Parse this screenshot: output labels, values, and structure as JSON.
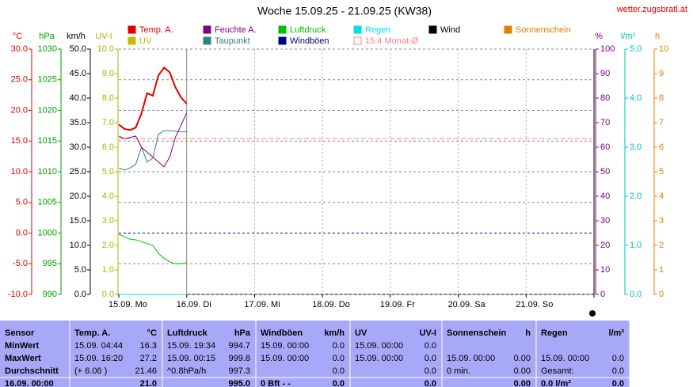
{
  "header": {
    "title": "Woche 15.09.25 - 21.09.25 (KW38)",
    "site": "wetter.zugsbratl.at"
  },
  "chart_data": {
    "type": "line",
    "x": [
      0,
      2,
      4,
      6,
      8,
      10,
      12,
      14,
      16,
      18,
      20,
      22,
      24
    ],
    "xlim": [
      0,
      168
    ],
    "xticks": [
      {
        "value": 0,
        "label": "15.09.  Mo"
      },
      {
        "value": 24,
        "label": "16.09.  Di"
      },
      {
        "value": 48,
        "label": "17.09.  Mi"
      },
      {
        "value": 72,
        "label": "18.09.  Do"
      },
      {
        "value": 96,
        "label": "19.09.  Fr"
      },
      {
        "value": 120,
        "label": "20.09.  Sa"
      },
      {
        "value": 144,
        "label": "21.09.  So"
      }
    ],
    "grid": true,
    "zero_line_color": "#0000c0",
    "axes": [
      {
        "label": "°C",
        "color": "#e00000",
        "side": "left",
        "ylim": [
          -10,
          30
        ],
        "yticks": [
          {
            "value": -10,
            "label": "-10.0"
          },
          {
            "value": -5,
            "label": "-5.0"
          },
          {
            "value": 0,
            "label": "0.0"
          },
          {
            "value": 5,
            "label": "5.0"
          },
          {
            "value": 10,
            "label": "10.0"
          },
          {
            "value": 15,
            "label": "15.0"
          },
          {
            "value": 20,
            "label": "20.0"
          },
          {
            "value": 25,
            "label": "25.0"
          },
          {
            "value": 30,
            "label": "30.0"
          }
        ]
      },
      {
        "label": "hPa",
        "color": "#00a000",
        "side": "left",
        "ylim": [
          990,
          1030
        ],
        "yticks": [
          990,
          995,
          1000,
          1005,
          1010,
          1015,
          1020,
          1025,
          1030
        ]
      },
      {
        "label": "km/h",
        "color": "#000000",
        "side": "left",
        "ylim": [
          0,
          50
        ],
        "yticks": [
          {
            "value": 0,
            "label": "0.0"
          },
          {
            "value": 5,
            "label": "5.0"
          },
          {
            "value": 10,
            "label": "10.0"
          },
          {
            "value": 15,
            "label": "15.0"
          },
          {
            "value": 20,
            "label": "20.0"
          },
          {
            "value": 25,
            "label": "25.0"
          },
          {
            "value": 30,
            "label": "30.0"
          },
          {
            "value": 35,
            "label": "35.0"
          },
          {
            "value": 40,
            "label": "40.0"
          },
          {
            "value": 45,
            "label": "45.0"
          },
          {
            "value": 50,
            "label": "50.0"
          }
        ]
      },
      {
        "label": "UV-I",
        "color": "#b0b000",
        "side": "left",
        "ylim": [
          0,
          10
        ],
        "yticks": [
          {
            "value": 0,
            "label": "0.0"
          },
          {
            "value": 1,
            "label": "1.0"
          },
          {
            "value": 2,
            "label": "2.0"
          },
          {
            "value": 3,
            "label": "3.0"
          },
          {
            "value": 4,
            "label": "4.0"
          },
          {
            "value": 5,
            "label": "5.0"
          },
          {
            "value": 6,
            "label": "6.0"
          },
          {
            "value": 7,
            "label": "7.0"
          },
          {
            "value": 8,
            "label": "8.0"
          },
          {
            "value": 9,
            "label": "9.0"
          },
          {
            "value": 10,
            "label": "10.0"
          }
        ]
      },
      {
        "label": "%",
        "color": "#800080",
        "side": "right",
        "ylim": [
          0,
          100
        ],
        "yticks": [
          0,
          10,
          20,
          30,
          40,
          50,
          60,
          70,
          80,
          90,
          100
        ]
      },
      {
        "label": "l/m²",
        "color": "#00c0c0",
        "side": "right",
        "ylim": [
          0,
          5
        ],
        "yticks": [
          {
            "value": 0,
            "label": "0.0"
          },
          {
            "value": 1,
            "label": "1.0"
          },
          {
            "value": 2,
            "label": "2.0"
          },
          {
            "value": 3,
            "label": "3.0"
          },
          {
            "value": 4,
            "label": "4.0"
          },
          {
            "value": 5,
            "label": "5.0"
          }
        ]
      },
      {
        "label": "h",
        "color": "#e08000",
        "side": "right",
        "ylim": [
          0,
          10
        ],
        "yticks": [
          0,
          1,
          2,
          3,
          4,
          5,
          6,
          7,
          8,
          9,
          10
        ]
      }
    ],
    "series": [
      {
        "name": "Temp. A.",
        "color": "#e00000",
        "axis": 0,
        "values": [
          17.7,
          17.0,
          16.8,
          17.2,
          19.5,
          22.8,
          22.4,
          25.7,
          27.0,
          26.2,
          23.8,
          22.1,
          21.1
        ]
      },
      {
        "name": "Feuchte A.",
        "color": "#800080",
        "axis": 4,
        "values": [
          64.5,
          63.5,
          64,
          64.5,
          60,
          58,
          56,
          54,
          52,
          56,
          64,
          69,
          74
        ]
      },
      {
        "name": "Luftdruck",
        "color": "#00c000",
        "axis": 1,
        "values": [
          999.8,
          999.4,
          999.0,
          998.9,
          998.6,
          998.3,
          998.0,
          996.7,
          995.9,
          995.3,
          995.0,
          995.0,
          995.2
        ]
      },
      {
        "name": "Regen",
        "color": "#00e0e0",
        "axis": 5,
        "values": [
          0,
          0,
          0,
          0,
          0,
          0,
          0,
          0,
          0,
          0,
          0,
          0,
          0
        ]
      },
      {
        "name": "Wind",
        "color": "#000000",
        "axis": 2,
        "values": [
          0,
          0,
          0,
          0,
          0,
          0,
          0,
          0,
          0,
          0,
          0,
          0,
          0
        ]
      },
      {
        "name": "Sonnenschein",
        "color": "#e08000",
        "axis": 6,
        "values": [
          0,
          0,
          0,
          0,
          0,
          0,
          0,
          0,
          0,
          0,
          0,
          0,
          0
        ]
      },
      {
        "name": "UV",
        "color": "#c0c000",
        "axis": 3,
        "values": [
          0,
          0,
          0,
          0,
          0,
          0,
          0,
          0,
          0,
          0,
          0,
          0,
          0
        ]
      },
      {
        "name": "Taupunkt",
        "color": "#308080",
        "axis": 0,
        "values": [
          10.6,
          10.3,
          10.6,
          11.2,
          14.0,
          11.6,
          12.2,
          16.1,
          16.7,
          16.7,
          16.6,
          16.5,
          16.5
        ]
      },
      {
        "name": "Windböen",
        "color": "#000080",
        "axis": 2,
        "values": [
          0,
          0,
          0,
          0,
          0,
          0,
          0,
          0,
          0,
          0,
          0,
          0,
          0
        ]
      }
    ],
    "reference_line": {
      "name": "15.4 Monat-Ø",
      "color": "#ff8080",
      "axis": 0,
      "value": 15.4
    }
  },
  "table": {
    "corner": "Sensor",
    "row_labels": [
      "MinWert",
      "MaxWert",
      "Durchschnitt",
      "16.09.  00:00"
    ],
    "columns": [
      {
        "title": "Temp. A.",
        "unit": "°C",
        "cells": [
          [
            "15.09.  04:44",
            "16.3"
          ],
          [
            "15.09.  16:20",
            "27.2"
          ],
          [
            "(+ 6.06 )",
            "21.46"
          ],
          [
            null,
            "21.0"
          ]
        ]
      },
      {
        "title": "Luftdruck",
        "unit": "hPa",
        "cells": [
          [
            "15.09.  19:34",
            "994.7"
          ],
          [
            "15.09.  00:15",
            "999.8"
          ],
          [
            "^0.8hPa/h",
            "997.3"
          ],
          [
            null,
            "995.0"
          ]
        ]
      },
      {
        "title": "Windböen",
        "unit": "km/h",
        "cells": [
          [
            "15.09.  00:00",
            "0.0"
          ],
          [
            "15.09.  00:00",
            "0.0"
          ],
          [
            null,
            "0.0"
          ],
          [
            "0 Bft - -",
            "0.0"
          ]
        ]
      },
      {
        "title": "UV",
        "unit": "UV-I",
        "cells": [
          [
            "15.09.  00:00",
            "0.0"
          ],
          [
            "15.09.  00:00",
            "0.0"
          ],
          [
            null,
            "0.0"
          ],
          [
            null,
            "0.0"
          ]
        ]
      },
      {
        "title": "Sonnenschein",
        "unit": "h",
        "cells": [
          [
            null,
            null
          ],
          [
            "15.09.  00:00",
            "0.00"
          ],
          [
            "0 min.",
            "0.00"
          ],
          [
            null,
            "0.00"
          ]
        ]
      },
      {
        "title": "Regen",
        "unit": "l/m²",
        "cells": [
          [
            null,
            null
          ],
          [
            "15.09.  00:00",
            "0.0"
          ],
          [
            "Gesamt:",
            "0.0"
          ],
          [
            "0.0 l/m²",
            "0.0"
          ]
        ]
      }
    ]
  }
}
